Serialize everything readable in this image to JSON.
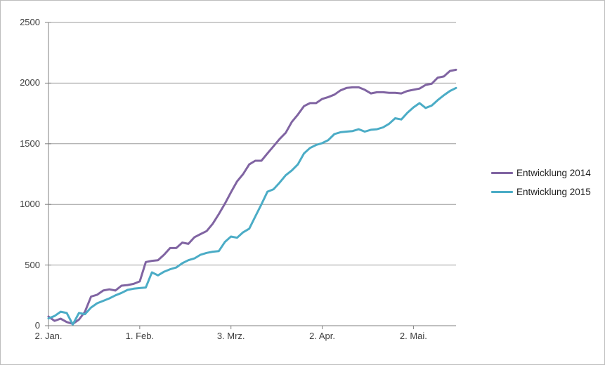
{
  "window": {
    "background": "#ffffff",
    "border_color": "#bdbdbd"
  },
  "chart_data": {
    "type": "line",
    "title": "",
    "xlabel": "",
    "ylabel": "",
    "grid": "horizontal",
    "gridline_color": "#9b9b9b",
    "axis_color": "#808080",
    "tick_label_color": "#3f3f3f",
    "legend_position": "right",
    "ylim": [
      0,
      2500
    ],
    "yticks": [
      0,
      500,
      1000,
      1500,
      2000,
      2500
    ],
    "ytick_labels": [
      "0",
      "500",
      "1000",
      "1500",
      "2000",
      "2500"
    ],
    "x_range_days": [
      0,
      134
    ],
    "x_ticks": [
      {
        "day": 0,
        "label": "2. Jan."
      },
      {
        "day": 30,
        "label": "1. Feb."
      },
      {
        "day": 60,
        "label": "3. Mrz."
      },
      {
        "day": 90,
        "label": "2. Apr."
      },
      {
        "day": 120,
        "label": "2. Mai."
      }
    ],
    "sample_step_days": 2,
    "series": [
      {
        "name": "Entwicklung 2014",
        "color": "#8064A2",
        "line_width": 3,
        "values": [
          75,
          40,
          58,
          30,
          15,
          50,
          115,
          240,
          255,
          290,
          300,
          290,
          330,
          335,
          345,
          365,
          525,
          535,
          540,
          585,
          640,
          640,
          685,
          675,
          730,
          755,
          780,
          840,
          920,
          1005,
          1100,
          1190,
          1250,
          1330,
          1360,
          1360,
          1420,
          1480,
          1540,
          1590,
          1680,
          1740,
          1810,
          1835,
          1835,
          1870,
          1885,
          1905,
          1940,
          1960,
          1965,
          1965,
          1945,
          1915,
          1925,
          1925,
          1920,
          1920,
          1915,
          1935,
          1945,
          1955,
          1985,
          1995,
          2045,
          2055,
          2100,
          2110
        ]
      },
      {
        "name": "Entwicklung 2015",
        "color": "#4BACC6",
        "line_width": 3,
        "values": [
          60,
          80,
          115,
          105,
          10,
          105,
          95,
          150,
          185,
          205,
          225,
          250,
          270,
          295,
          305,
          310,
          315,
          440,
          415,
          445,
          465,
          480,
          515,
          540,
          555,
          585,
          600,
          610,
          615,
          690,
          735,
          725,
          770,
          800,
          900,
          1000,
          1105,
          1125,
          1180,
          1240,
          1280,
          1330,
          1420,
          1465,
          1490,
          1505,
          1530,
          1580,
          1595,
          1600,
          1605,
          1620,
          1600,
          1615,
          1620,
          1635,
          1665,
          1710,
          1700,
          1755,
          1800,
          1835,
          1795,
          1815,
          1860,
          1900,
          1935,
          1960
        ]
      }
    ]
  }
}
